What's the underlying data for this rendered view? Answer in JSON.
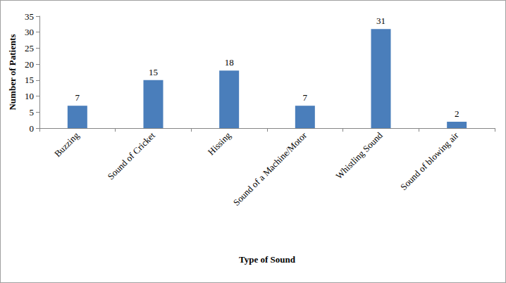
{
  "chart_data": {
    "type": "bar",
    "x_label": "Type of Sound",
    "y_label": "Number of Patients",
    "categories": [
      "Buzzing",
      "Sound of Cricket",
      "Hissing",
      "Sound of a Machine/Motor",
      "Whistling Sound",
      "Sound of blowing air"
    ],
    "values": [
      7,
      15,
      18,
      7,
      31,
      2
    ],
    "color": "#4a7ebb",
    "ylim": [
      0,
      35
    ],
    "yticks": [
      0,
      5,
      10,
      15,
      20,
      25,
      30,
      35
    ],
    "grid": false,
    "data_labels": true
  }
}
